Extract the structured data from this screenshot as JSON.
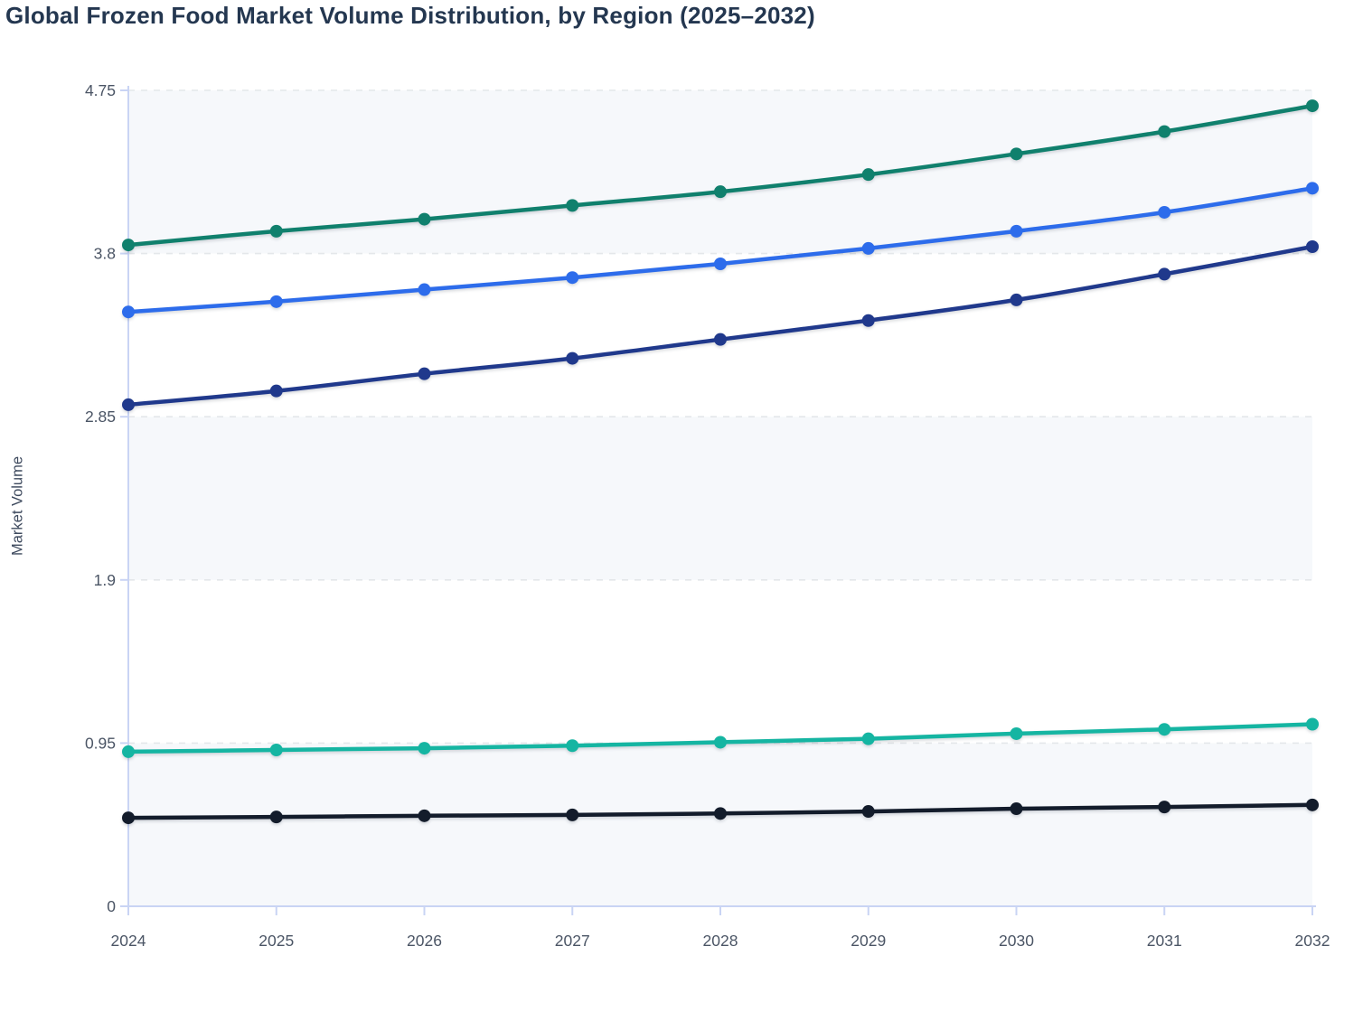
{
  "title": "Global Frozen Food Market Volume Distribution, by Region (2025–2032)",
  "y_axis_label": "Market Volume",
  "style": {
    "title_color": "#243750",
    "tick_label_color": "#4b5565",
    "axis_line_color": "#c9d4f4",
    "gridline_color": "#e4e7ea",
    "band_fill": "#f6f8fb",
    "background": "#ffffff"
  },
  "chart_data": {
    "type": "line",
    "title": "Global Frozen Food Market Volume Distribution, by Region (2025–2032)",
    "xlabel": "",
    "ylabel": "Market Volume",
    "x": [
      2024,
      2025,
      2026,
      2027,
      2028,
      2029,
      2030,
      2031,
      2032
    ],
    "x_tick_labels": [
      "2024",
      "2025",
      "2026",
      "2027",
      "2028",
      "2029",
      "2030",
      "2031",
      "2032"
    ],
    "y_ticks": [
      0,
      0.95,
      1.9,
      2.85,
      3.8,
      4.75
    ],
    "y_tick_labels": [
      "0",
      "0.95",
      "1.9",
      "2.85",
      "3.8",
      "4.75"
    ],
    "ylim": [
      0,
      4.75
    ],
    "grid": "horizontal-dashed",
    "legend": "none",
    "markers": true,
    "series": [
      {
        "name": "green-top-line",
        "color": "#10806d",
        "values": [
          3.85,
          3.93,
          4.0,
          4.08,
          4.16,
          4.26,
          4.38,
          4.51,
          4.66
        ]
      },
      {
        "name": "blue-line",
        "color": "#2d6ceb",
        "values": [
          3.46,
          3.52,
          3.59,
          3.66,
          3.74,
          3.83,
          3.93,
          4.04,
          4.18
        ]
      },
      {
        "name": "navy-line",
        "color": "#20398c",
        "values": [
          2.92,
          3.0,
          3.1,
          3.19,
          3.3,
          3.41,
          3.53,
          3.68,
          3.84
        ]
      },
      {
        "name": "teal-line",
        "color": "#15b5a2",
        "values": [
          0.9,
          0.91,
          0.92,
          0.935,
          0.955,
          0.975,
          1.005,
          1.03,
          1.06
        ]
      },
      {
        "name": "black-line",
        "color": "#131c2b",
        "values": [
          0.515,
          0.52,
          0.527,
          0.532,
          0.54,
          0.552,
          0.568,
          0.578,
          0.59
        ]
      }
    ]
  }
}
